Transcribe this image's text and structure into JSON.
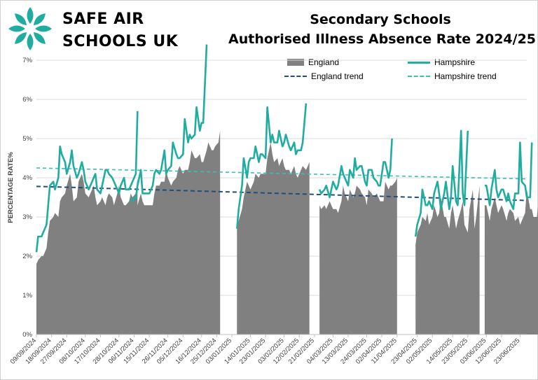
{
  "brand": {
    "line1": "SAFE AIR",
    "line2": "SCHOOLS UK",
    "accent": "#20ada0"
  },
  "chart_data": {
    "type": "area",
    "title": "Secondary Schools",
    "subtitle": "Authorised Illness Absence Rate 2024/25",
    "xlabel": "",
    "ylabel": "PERCENTAGE RATE%",
    "ylim": [
      0,
      7.5
    ],
    "yticks": [
      "0%",
      "1%",
      "2%",
      "3%",
      "4%",
      "5%",
      "6%",
      "7%"
    ],
    "xticks": [
      "09/09/2024",
      "18/09/2024",
      "27/09/2024",
      "08/10/2024",
      "17/10/2024",
      "28/10/2024",
      "06/11/2024",
      "15/11/2024",
      "26/11/2024",
      "05/12/2024",
      "16/12/2024",
      "25/12/2024",
      "03/01/2025",
      "14/01/2025",
      "23/01/2025",
      "03/02/2025",
      "12/02/2025",
      "21/02/2025",
      "04/03/2025",
      "13/03/2025",
      "24/03/2025",
      "02/04/2025",
      "11/04/2025",
      "23/04/2025",
      "02/05/2025",
      "14/05/2025",
      "23/05/2025",
      "03/06/2025",
      "12/06/2025",
      "23/06/2025"
    ],
    "grid": "horizontal",
    "legend_position": "top-right",
    "colors": {
      "England": "#808080",
      "Hampshire": "#20ada0",
      "England trend": "#1f4e79",
      "Hampshire trend": "#3cbfb2"
    },
    "legend": [
      {
        "name": "England",
        "style": "area"
      },
      {
        "name": "Hampshire",
        "style": "line"
      },
      {
        "name": "England trend",
        "style": "dashed"
      },
      {
        "name": "Hampshire trend",
        "style": "dashed"
      }
    ],
    "series": [
      {
        "name": "England",
        "segments": [
          {
            "start": "09/09/2024",
            "values": [
              1.8,
              1.9,
              2.0,
              2.0,
              2.2,
              2.6,
              2.9,
              3.0,
              3.1,
              3.0,
              3.4,
              3.5,
              3.6,
              3.8,
              4.1,
              3.8,
              3.4,
              3.5,
              3.9,
              4.1,
              3.9,
              3.6,
              3.5,
              3.6,
              3.8,
              3.5,
              3.3,
              3.4,
              3.5,
              3.3,
              3.5,
              3.6,
              3.5,
              3.3,
              3.6,
              3.8,
              3.5,
              3.3,
              3.3,
              3.4,
              3.6,
              3.5,
              3.6,
              4.0
            ]
          },
          {
            "start": "04/11/2024",
            "values": [
              3.1,
              3.1,
              3.2,
              3.3,
              3.6,
              3.4,
              3.3,
              3.3,
              3.3,
              3.3,
              3.6,
              3.8,
              3.8,
              3.9,
              3.9,
              4.2,
              4.0,
              3.8,
              3.9,
              4.0,
              4.2,
              4.3,
              4.1,
              4.2,
              4.2,
              4.4,
              4.7,
              4.5,
              4.5,
              4.6,
              4.4,
              4.4,
              4.7,
              4.9,
              4.7,
              4.7,
              4.8,
              4.9,
              5.2
            ]
          },
          {
            "start": "06/01/2025",
            "values": [
              2.7,
              2.9,
              3.2,
              3.5,
              3.9,
              3.8,
              3.7,
              3.9,
              4.1,
              4.0,
              4.1,
              4.1,
              4.1,
              4.5,
              4.9,
              4.6,
              4.4,
              4.5,
              4.3,
              4.5,
              4.3,
              4.2,
              4.2,
              4.1,
              4.3,
              4.1,
              4.0,
              4.2,
              4.3,
              4.2,
              4.3,
              4.4
            ]
          },
          {
            "start": "24/02/2025",
            "values": [
              3.3,
              3.2,
              3.3,
              3.2,
              3.4,
              3.3,
              3.2,
              3.2,
              3.1,
              3.4,
              3.8,
              3.6,
              3.4,
              3.7,
              3.5,
              3.6,
              3.8,
              3.7,
              3.6,
              3.5,
              3.3,
              3.7,
              3.6,
              3.5,
              3.6,
              3.5,
              3.4,
              3.4,
              3.9,
              3.7,
              3.8,
              3.8,
              3.9,
              4.0
            ]
          },
          {
            "start": "22/04/2025",
            "values": [
              2.3,
              2.6,
              2.8,
              3.0,
              2.9,
              3.1,
              2.8,
              3.0,
              3.3,
              3.0,
              3.1,
              3.5,
              3.0,
              3.0,
              2.7,
              3.1,
              3.3,
              2.7,
              2.9,
              3.2,
              3.4,
              2.8,
              2.6,
              3.2,
              3.7,
              2.7,
              3.0,
              3.8
            ]
          },
          {
            "start": "02/06/2025",
            "values": [
              3.3,
              3.3,
              2.9,
              3.2,
              3.5,
              3.3,
              3.1,
              3.3,
              3.2,
              2.9,
              3.1,
              3.2,
              3.1,
              2.9,
              3.0,
              2.8,
              2.9,
              3.1,
              3.7,
              3.2,
              3.2,
              3.0,
              3.0,
              3.4,
              3.8
            ]
          }
        ]
      },
      {
        "name": "Hampshire",
        "segments": [
          {
            "start": "09/09/2024",
            "values": [
              2.1,
              2.5,
              2.5,
              2.6,
              2.8,
              3.3,
              3.8,
              3.9,
              3.7,
              4.0,
              4.8,
              4.6,
              4.4,
              4.1,
              4.4,
              4.7,
              4.3,
              4.0,
              4.1,
              4.4,
              4.2,
              3.9,
              3.7,
              3.8,
              4.0,
              4.1,
              3.7,
              3.6,
              3.8,
              4.2,
              4.2,
              4.1,
              4.0,
              3.9,
              3.7,
              3.6,
              3.8,
              4.0,
              3.7,
              3.7,
              3.8,
              3.9,
              4.1,
              5.7
            ]
          },
          {
            "start": "04/11/2024",
            "values": [
              3.5,
              3.4,
              3.5,
              3.8,
              4.2,
              3.6,
              3.6,
              3.6,
              3.6,
              3.8,
              4.1,
              4.2,
              4.1,
              4.2,
              4.7,
              4.1,
              4.2,
              4.3,
              4.9,
              4.6,
              4.5,
              4.5,
              4.6,
              5.5,
              4.9,
              5.1,
              5.0,
              5.1,
              5.8,
              5.2,
              5.4,
              5.4,
              7.4
            ]
          },
          {
            "start": "06/01/2025",
            "values": [
              2.7,
              3.2,
              3.8,
              4.5,
              4.0,
              4.4,
              4.5,
              4.5,
              4.8,
              4.4,
              4.6,
              4.6,
              4.5,
              5.8,
              4.9,
              5.1,
              4.9,
              4.9,
              5.2,
              4.8,
              4.9,
              5.1,
              4.8,
              4.7,
              4.9,
              4.6,
              4.7,
              4.7,
              4.9,
              5.9
            ]
          },
          {
            "start": "24/02/2025",
            "values": [
              3.7,
              3.6,
              3.7,
              3.8,
              3.5,
              3.7,
              3.9,
              3.7,
              3.8,
              4.3,
              4.1,
              4.0,
              3.8,
              4.2,
              4.0,
              4.5,
              4.2,
              4.3,
              4.3,
              3.9,
              3.8,
              4.2,
              4.2,
              4.0,
              3.9,
              3.8,
              3.8,
              4.4,
              4.4,
              4.0,
              4.2,
              5.0
            ]
          },
          {
            "start": "22/04/2025",
            "values": [
              2.5,
              2.8,
              3.1,
              3.7,
              3.3,
              3.3,
              3.4,
              3.2,
              3.6,
              3.9,
              3.6,
              3.2,
              3.6,
              3.9,
              3.2,
              3.5,
              4.3,
              3.4,
              3.3,
              5.2,
              3.6,
              3.3,
              5.2
            ]
          },
          {
            "start": "02/06/2025",
            "values": [
              3.8,
              3.8,
              3.3,
              3.7,
              4.2,
              3.7,
              3.5,
              3.7,
              3.7,
              3.4,
              3.6,
              3.4,
              3.2,
              3.6,
              3.6,
              4.9,
              3.9,
              3.8,
              3.5,
              3.5,
              4.9
            ]
          }
        ]
      },
      {
        "name": "England trend",
        "x": [
          "09/09/2024",
          "27/06/2025"
        ],
        "values": [
          3.78,
          3.42
        ]
      },
      {
        "name": "Hampshire trend",
        "x": [
          "09/09/2024",
          "27/06/2025"
        ],
        "values": [
          4.25,
          3.97
        ]
      }
    ]
  }
}
